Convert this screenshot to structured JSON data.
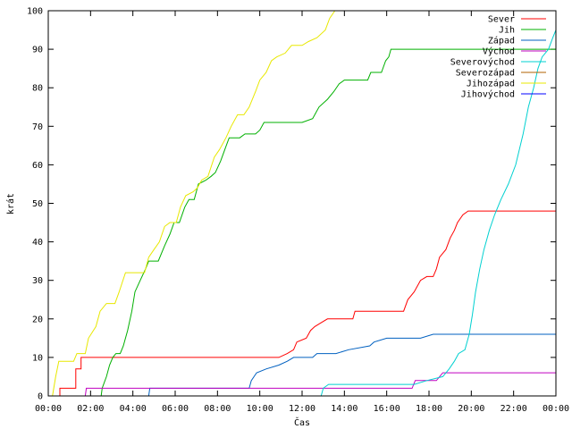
{
  "chart_data": {
    "type": "line",
    "xlabel": "Čas",
    "ylabel": "krát",
    "xlim": [
      0,
      24
    ],
    "ylim": [
      0,
      100
    ],
    "x_ticks": [
      {
        "value": 0,
        "label": "00:00"
      },
      {
        "value": 2,
        "label": "02:00"
      },
      {
        "value": 4,
        "label": "04:00"
      },
      {
        "value": 6,
        "label": "06:00"
      },
      {
        "value": 8,
        "label": "08:00"
      },
      {
        "value": 10,
        "label": "10:00"
      },
      {
        "value": 12,
        "label": "12:00"
      },
      {
        "value": 14,
        "label": "14:00"
      },
      {
        "value": 16,
        "label": "16:00"
      },
      {
        "value": 18,
        "label": "18:00"
      },
      {
        "value": 20,
        "label": "20:00"
      },
      {
        "value": 22,
        "label": "22:00"
      },
      {
        "value": 24,
        "label": "00:00"
      }
    ],
    "y_ticks": [
      0,
      10,
      20,
      30,
      40,
      50,
      60,
      70,
      80,
      90,
      100
    ],
    "grid": false,
    "legend_position": "top-right",
    "series": [
      {
        "name": "Sever",
        "color": "#ff0000",
        "points": [
          [
            0.55,
            0
          ],
          [
            0.55,
            2
          ],
          [
            1.3,
            2
          ],
          [
            1.3,
            7
          ],
          [
            1.55,
            7
          ],
          [
            1.55,
            10
          ],
          [
            5.0,
            10
          ],
          [
            10.9,
            10
          ],
          [
            11.3,
            11
          ],
          [
            11.6,
            12
          ],
          [
            11.75,
            14
          ],
          [
            12.2,
            15
          ],
          [
            12.4,
            17
          ],
          [
            12.6,
            18
          ],
          [
            12.9,
            19
          ],
          [
            13.2,
            20
          ],
          [
            14.4,
            20
          ],
          [
            14.5,
            22
          ],
          [
            16.8,
            22
          ],
          [
            17.0,
            25
          ],
          [
            17.3,
            27
          ],
          [
            17.6,
            30
          ],
          [
            17.9,
            31
          ],
          [
            18.2,
            31
          ],
          [
            18.35,
            33
          ],
          [
            18.5,
            36
          ],
          [
            18.8,
            38
          ],
          [
            19.0,
            41
          ],
          [
            19.2,
            43
          ],
          [
            19.35,
            45
          ],
          [
            19.6,
            47
          ],
          [
            19.85,
            48
          ],
          [
            24.0,
            48
          ]
        ]
      },
      {
        "name": "Jih",
        "color": "#00b000",
        "points": [
          [
            0,
            0
          ],
          [
            2.5,
            0
          ],
          [
            2.55,
            2
          ],
          [
            2.75,
            5
          ],
          [
            2.9,
            8
          ],
          [
            3.05,
            10
          ],
          [
            3.2,
            11
          ],
          [
            3.4,
            11
          ],
          [
            3.55,
            13
          ],
          [
            3.75,
            17
          ],
          [
            3.95,
            22
          ],
          [
            4.1,
            27
          ],
          [
            4.35,
            30
          ],
          [
            4.6,
            33
          ],
          [
            4.75,
            35
          ],
          [
            5.2,
            35
          ],
          [
            5.5,
            39
          ],
          [
            5.75,
            42
          ],
          [
            5.95,
            45
          ],
          [
            6.2,
            45
          ],
          [
            6.45,
            49
          ],
          [
            6.65,
            51
          ],
          [
            6.9,
            51
          ],
          [
            7.1,
            55
          ],
          [
            7.45,
            56
          ],
          [
            7.7,
            57
          ],
          [
            7.9,
            58
          ],
          [
            8.15,
            61
          ],
          [
            8.35,
            64
          ],
          [
            8.55,
            67
          ],
          [
            9.05,
            67
          ],
          [
            9.3,
            68
          ],
          [
            9.8,
            68
          ],
          [
            10.0,
            69
          ],
          [
            10.2,
            71
          ],
          [
            12.0,
            71
          ],
          [
            12.5,
            72
          ],
          [
            12.8,
            75
          ],
          [
            13.2,
            77
          ],
          [
            13.5,
            79
          ],
          [
            13.75,
            81
          ],
          [
            14.0,
            82
          ],
          [
            15.1,
            82
          ],
          [
            15.25,
            84
          ],
          [
            15.75,
            84
          ],
          [
            15.95,
            87
          ],
          [
            16.1,
            88
          ],
          [
            16.2,
            90
          ],
          [
            24.0,
            90
          ]
        ]
      },
      {
        "name": "Západ",
        "color": "#0060c0",
        "points": [
          [
            0,
            0
          ],
          [
            4.75,
            0
          ],
          [
            4.8,
            2
          ],
          [
            9.5,
            2
          ],
          [
            9.6,
            4
          ],
          [
            9.85,
            6
          ],
          [
            10.3,
            7
          ],
          [
            10.9,
            8
          ],
          [
            11.3,
            9
          ],
          [
            11.6,
            10
          ],
          [
            12.5,
            10
          ],
          [
            12.7,
            11
          ],
          [
            13.6,
            11
          ],
          [
            14.2,
            12
          ],
          [
            15.2,
            13
          ],
          [
            15.4,
            14
          ],
          [
            16.0,
            15
          ],
          [
            17.4,
            15
          ],
          [
            17.6,
            15
          ],
          [
            18.2,
            16
          ],
          [
            24.0,
            16
          ]
        ]
      },
      {
        "name": "Východ",
        "color": "#c000c0",
        "points": [
          [
            0,
            0
          ],
          [
            1.75,
            0
          ],
          [
            1.8,
            2
          ],
          [
            17.2,
            2
          ],
          [
            17.35,
            4
          ],
          [
            18.35,
            4
          ],
          [
            18.65,
            6
          ],
          [
            24.0,
            6
          ]
        ]
      },
      {
        "name": "Severovýchod",
        "color": "#00d0d0",
        "points": [
          [
            0,
            0
          ],
          [
            12.9,
            0
          ],
          [
            13.0,
            2
          ],
          [
            13.25,
            3
          ],
          [
            17.3,
            3
          ],
          [
            17.9,
            4
          ],
          [
            18.65,
            5
          ],
          [
            18.95,
            7
          ],
          [
            19.2,
            9
          ],
          [
            19.4,
            11
          ],
          [
            19.7,
            12
          ],
          [
            19.9,
            16
          ],
          [
            20.05,
            21
          ],
          [
            20.2,
            27
          ],
          [
            20.4,
            33
          ],
          [
            20.6,
            38
          ],
          [
            20.85,
            43
          ],
          [
            21.1,
            47
          ],
          [
            21.4,
            51
          ],
          [
            21.75,
            55
          ],
          [
            22.1,
            60
          ],
          [
            22.45,
            68
          ],
          [
            22.7,
            75
          ],
          [
            22.95,
            80
          ],
          [
            23.15,
            85
          ],
          [
            23.35,
            88
          ],
          [
            23.65,
            90
          ],
          [
            23.85,
            93
          ],
          [
            24.0,
            95
          ]
        ]
      },
      {
        "name": "Severozápad",
        "color": "#b06000",
        "points": []
      },
      {
        "name": "Jihozápad",
        "color": "#e8e800",
        "points": [
          [
            0.2,
            0
          ],
          [
            0.35,
            5
          ],
          [
            0.5,
            9
          ],
          [
            1.2,
            9
          ],
          [
            1.35,
            11
          ],
          [
            1.75,
            11
          ],
          [
            1.9,
            15
          ],
          [
            2.25,
            18
          ],
          [
            2.45,
            22
          ],
          [
            2.75,
            24
          ],
          [
            3.15,
            24
          ],
          [
            3.35,
            27
          ],
          [
            3.65,
            32
          ],
          [
            4.35,
            32
          ],
          [
            4.55,
            32
          ],
          [
            4.75,
            36
          ],
          [
            5.0,
            38
          ],
          [
            5.25,
            40
          ],
          [
            5.5,
            44
          ],
          [
            5.75,
            45
          ],
          [
            6.05,
            45
          ],
          [
            6.25,
            49
          ],
          [
            6.5,
            52
          ],
          [
            6.85,
            53
          ],
          [
            7.05,
            54
          ],
          [
            7.25,
            56
          ],
          [
            7.55,
            57
          ],
          [
            7.85,
            62
          ],
          [
            8.1,
            64
          ],
          [
            8.4,
            67
          ],
          [
            8.65,
            70
          ],
          [
            8.95,
            73
          ],
          [
            9.25,
            73
          ],
          [
            9.5,
            75
          ],
          [
            9.8,
            79
          ],
          [
            10.0,
            82
          ],
          [
            10.3,
            84
          ],
          [
            10.55,
            87
          ],
          [
            10.8,
            88
          ],
          [
            11.2,
            89
          ],
          [
            11.5,
            91
          ],
          [
            12.0,
            91
          ],
          [
            12.3,
            92
          ],
          [
            12.7,
            93
          ],
          [
            13.1,
            95
          ],
          [
            13.3,
            98
          ],
          [
            13.55,
            100
          ]
        ]
      },
      {
        "name": "Jihovýchod",
        "color": "#0000ff",
        "points": []
      }
    ]
  }
}
